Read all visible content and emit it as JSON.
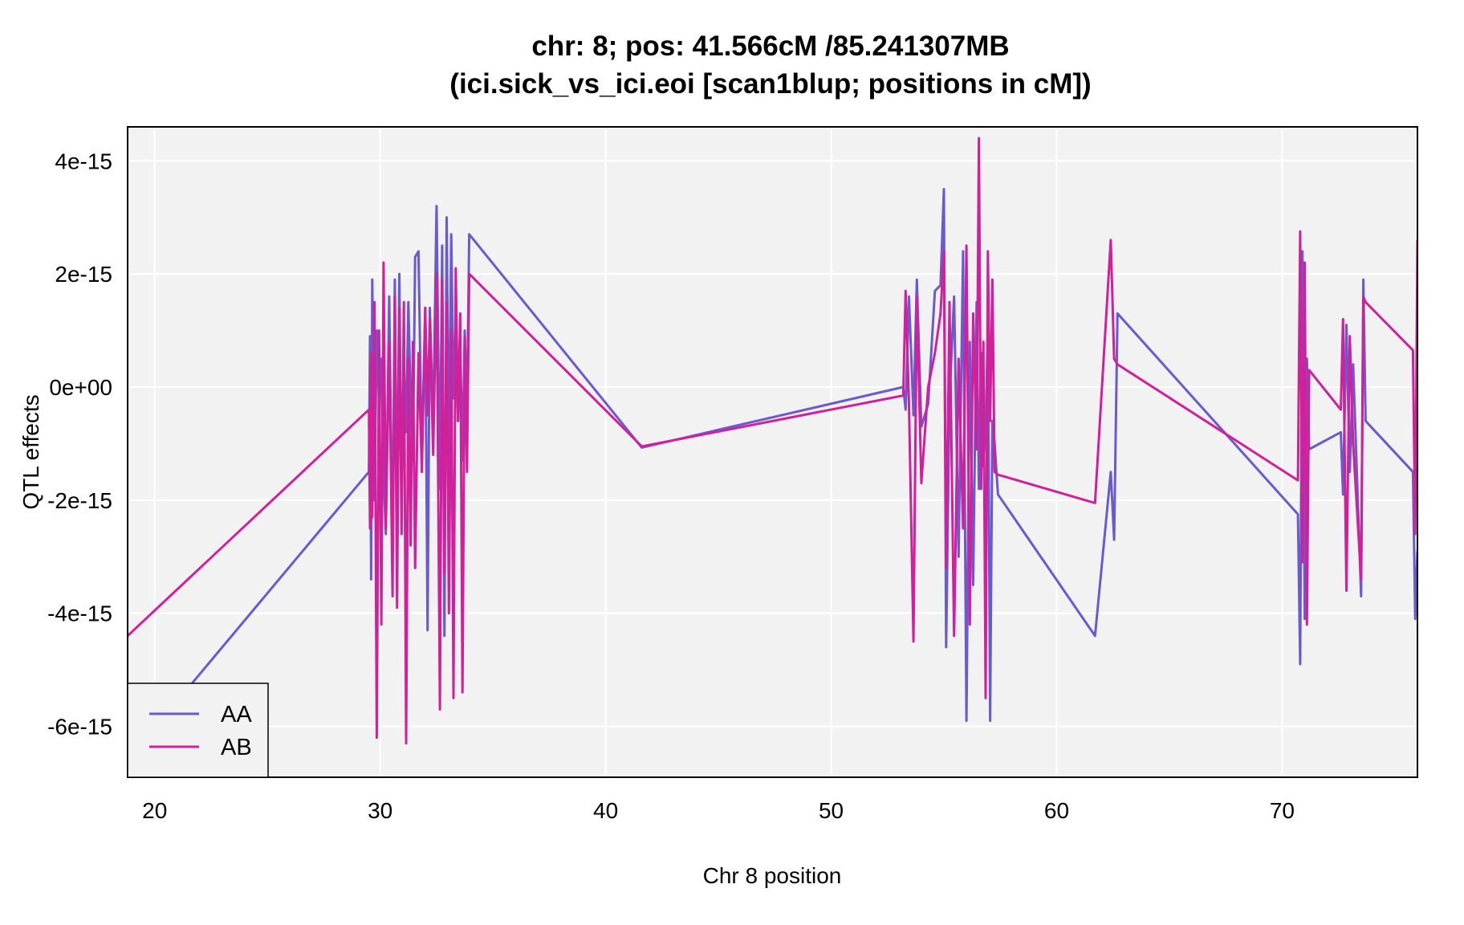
{
  "chart_data": {
    "type": "line",
    "title": "chr: 8; pos: 41.566cM /85.241307MB",
    "subtitle": "(ici.sick_vs_ici.eoi [scan1blup; positions in cM])",
    "xlabel": "Chr 8 position",
    "ylabel": "QTL effects",
    "xlim": [
      18.8,
      76.0
    ],
    "ylim": [
      -6.9e-15,
      4.6e-15
    ],
    "xticks": [
      20,
      30,
      40,
      50,
      60,
      70
    ],
    "xtick_labels": [
      "20",
      "30",
      "40",
      "50",
      "60",
      "70"
    ],
    "yticks": [
      -6e-15,
      -4e-15,
      -2e-15,
      0,
      2e-15,
      4e-15
    ],
    "ytick_labels": [
      "-6e-15",
      "-4e-15",
      "-2e-15",
      "0e+00",
      "2e-15",
      "4e-15"
    ],
    "grid": true,
    "legend_position": "bottom-left",
    "x": [
      18.8,
      29.5,
      29.55,
      29.6,
      29.65,
      29.75,
      29.85,
      29.95,
      30.05,
      30.15,
      30.25,
      30.4,
      30.55,
      30.65,
      30.75,
      30.85,
      30.95,
      31.05,
      31.15,
      31.25,
      31.35,
      31.45,
      31.55,
      31.7,
      31.85,
      32.0,
      32.1,
      32.2,
      32.35,
      32.5,
      32.65,
      32.75,
      32.85,
      32.95,
      33.05,
      33.15,
      33.25,
      33.35,
      33.45,
      33.55,
      33.65,
      33.75,
      33.85,
      33.95,
      41.6,
      53.2,
      53.3,
      53.45,
      53.65,
      53.8,
      54.0,
      54.3,
      54.6,
      54.85,
      55.0,
      55.1,
      55.25,
      55.45,
      55.65,
      55.85,
      56.0,
      56.15,
      56.3,
      56.45,
      56.55,
      56.65,
      56.75,
      56.85,
      56.95,
      57.05,
      57.15,
      57.25,
      57.4,
      61.7,
      62.4,
      62.55,
      62.7,
      70.7,
      70.8,
      70.9,
      71.0,
      71.1,
      71.2,
      72.6,
      72.7,
      72.85,
      73.0,
      73.15,
      73.5,
      73.6,
      73.7,
      75.8,
      75.9,
      76.0
    ],
    "series": [
      {
        "name": "AA",
        "color": "#6a5acd",
        "values": [
          -6.6e-15,
          -1.5e-15,
          9e-16,
          -3.4e-15,
          1.9e-15,
          -2e-15,
          1e-15,
          -3e-16,
          5e-16,
          -1.5e-15,
          -2.6e-15,
          1.6e-15,
          -3e-15,
          1.9e-15,
          -2.6e-15,
          2e-15,
          -2.1e-15,
          5e-16,
          -8e-16,
          1.5e-15,
          -3e-16,
          -1.3e-15,
          2.3e-15,
          2.4e-15,
          -1.3e-15,
          1.4e-15,
          -4.3e-15,
          1.4e-15,
          -7e-16,
          3.2e-15,
          -1.8e-15,
          2.5e-15,
          -4.4e-15,
          3e-15,
          -1.5e-15,
          2.7e-15,
          -2e-16,
          1.2e-15,
          -6e-16,
          8e-16,
          -1.3e-15,
          1e-15,
          -5e-16,
          2.7e-15,
          -1.07e-15,
          0.0,
          -4e-16,
          1.6e-15,
          -5e-16,
          1.9e-15,
          -7e-16,
          -3e-16,
          1.7e-15,
          1.8e-15,
          3.5e-15,
          -4.6e-15,
          -2e-16,
          1.6e-15,
          -3e-15,
          2.4e-15,
          -5.9e-15,
          8e-16,
          -3.5e-15,
          1.5e-15,
          -1.8e-15,
          6e-16,
          -1.4e-15,
          -7e-16,
          1.1e-15,
          -5.9e-15,
          -6e-16,
          -1e-15,
          -1.9e-15,
          -4.4e-15,
          -1.5e-15,
          -2.7e-15,
          1.3e-15,
          -2.25e-15,
          -4.9e-15,
          2.4e-15,
          -4.1e-15,
          5e-16,
          -1.1e-15,
          -8e-16,
          -1.9e-15,
          1.1e-15,
          -1.5e-15,
          4e-16,
          -3.7e-15,
          1.9e-15,
          -6e-16,
          -1.5e-15,
          -4.1e-15,
          -2.9e-15
        ]
      },
      {
        "name": "AB",
        "color": "#d0209a",
        "values": [
          -4.4e-15,
          -4e-16,
          -2.5e-15,
          6e-16,
          -2.3e-15,
          1.5e-15,
          -6.2e-15,
          1e-15,
          -4.2e-15,
          2.2e-15,
          -2.5e-15,
          8e-16,
          -3.7e-15,
          1.6e-15,
          -3.9e-15,
          1.4e-15,
          -2.6e-15,
          1.5e-15,
          -6.3e-15,
          5e-16,
          -2.8e-15,
          8e-16,
          -3.2e-15,
          6e-16,
          -1.5e-15,
          1.4e-15,
          -5e-16,
          1.2e-15,
          -1.2e-15,
          2e-15,
          -5.7e-15,
          1.9e-15,
          -3.3e-15,
          1.5e-15,
          -4e-15,
          1e-15,
          -5.5e-15,
          2.1e-15,
          -6e-16,
          1.3e-15,
          -5.4e-15,
          9e-16,
          -1.5e-15,
          2e-15,
          -1.05e-15,
          -1.5e-16,
          1.7e-15,
          -3e-16,
          -4.5e-15,
          1.6e-15,
          -1.7e-15,
          0.0,
          6e-16,
          1.3e-15,
          2.4e-15,
          -3.2e-15,
          1.5e-15,
          -4.4e-15,
          5e-16,
          -2.5e-15,
          2.5e-15,
          -4.2e-15,
          1.3e-15,
          -1.1e-15,
          4.4e-15,
          -1.8e-15,
          8e-16,
          -5.5e-15,
          2.4e-15,
          -6e-16,
          1.9e-15,
          -1.5e-15,
          -1.55e-15,
          -2.05e-15,
          2.6e-15,
          5e-16,
          4e-16,
          -1.65e-15,
          2.75e-15,
          -3.1e-15,
          2.2e-15,
          -4.2e-15,
          3e-16,
          -4e-16,
          1.2e-15,
          -3.6e-15,
          9e-16,
          -1e-15,
          -3.4e-15,
          1.6e-15,
          1.5e-15,
          6.5e-16,
          -2.6e-15,
          2.6e-15
        ]
      }
    ]
  }
}
